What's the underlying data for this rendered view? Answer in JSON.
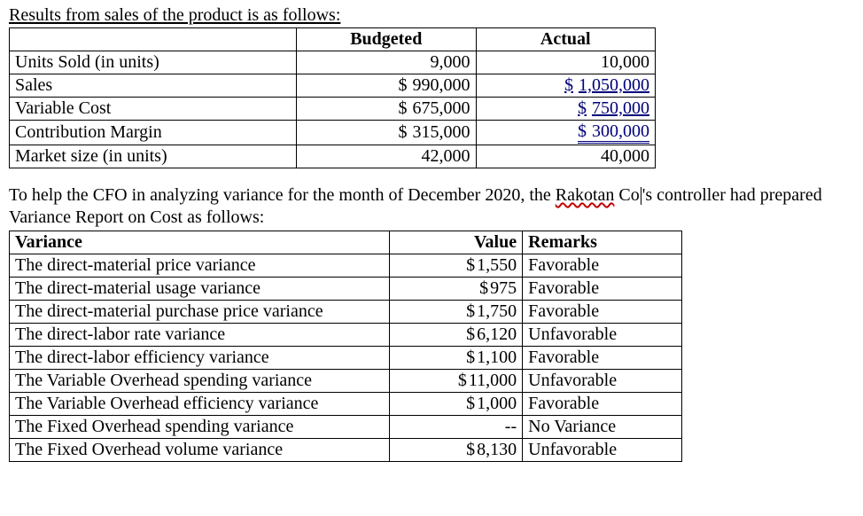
{
  "intro_text": "Results from sales of the product is as follows:",
  "table1": {
    "header_budgeted": "Budgeted",
    "header_actual": "Actual",
    "rows": [
      {
        "label": "Units Sold (in units)",
        "budgeted_plain": "9,000",
        "actual_plain": "10,000"
      },
      {
        "label": "Sales",
        "budgeted_money": "990,000",
        "actual_money_ul1": "1,050,000"
      },
      {
        "label": "Variable Cost",
        "budgeted_money": "675,000",
        "actual_money_ul1": "750,000"
      },
      {
        "label": "Contribution Margin",
        "budgeted_money": "315,000",
        "actual_money_ul2": "300,000"
      },
      {
        "label": "Market size (in units)",
        "budgeted_plain": "42,000",
        "actual_plain": "40,000"
      }
    ]
  },
  "para2_pre": "To help the CFO in analyzing variance for the month of December 2020, the ",
  "para2_squiggle": "Rakotan",
  "para2_mid": " Co",
  "para2_post": "'s controller had prepared Variance Report on Cost as follows:",
  "table2": {
    "header_variance": "Variance",
    "header_value": "Value",
    "header_remarks": "Remarks",
    "rows": [
      {
        "label": "The direct-material price variance",
        "value": "1,550",
        "remarks": "Favorable",
        "has_dollar": true
      },
      {
        "label": "The direct-material usage variance",
        "value": "975",
        "remarks": "Favorable",
        "has_dollar": true
      },
      {
        "label": "The direct-material purchase price variance",
        "value": "1,750",
        "remarks": "Favorable",
        "has_dollar": true
      },
      {
        "label": "The direct-labor rate variance",
        "value": "6,120",
        "remarks": "Unfavorable",
        "has_dollar": true
      },
      {
        "label": "The direct-labor efficiency variance",
        "value": "1,100",
        "remarks": "Favorable",
        "has_dollar": true
      },
      {
        "label": "The Variable Overhead spending variance",
        "value": "11,000",
        "remarks": "Unfavorable",
        "has_dollar": true
      },
      {
        "label": "The Variable Overhead efficiency variance",
        "value": "1,000",
        "remarks": "Favorable",
        "has_dollar": true
      },
      {
        "label": "The Fixed Overhead spending variance",
        "value": "--",
        "remarks": "No Variance",
        "has_dollar": false
      },
      {
        "label": "The Fixed Overhead volume variance",
        "value": "8,130",
        "remarks": "Unfavorable",
        "has_dollar": true
      }
    ]
  }
}
